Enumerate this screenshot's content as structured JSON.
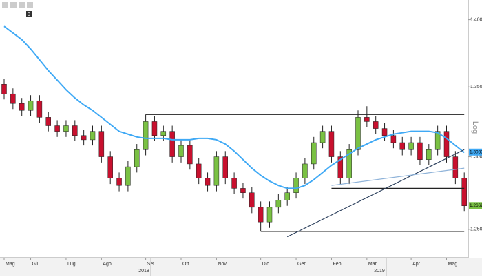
{
  "chart_data": {
    "type": "candlestick",
    "badge": "0",
    "log_scale": true,
    "log_label": "Log",
    "categories": [
      "Mag",
      null,
      null,
      "Giu",
      null,
      null,
      null,
      "Lug",
      null,
      null,
      null,
      "Ago",
      null,
      null,
      null,
      null,
      "Set",
      null,
      null,
      null,
      "Ott",
      null,
      null,
      null,
      "Nov",
      null,
      null,
      null,
      null,
      "Dic",
      null,
      null,
      null,
      "Gen",
      null,
      null,
      null,
      "Feb",
      null,
      null,
      null,
      "Mar",
      null,
      null,
      null,
      null,
      "Apr",
      null,
      null,
      null,
      "Mag",
      null,
      null
    ],
    "years": [
      "2018",
      "2019"
    ],
    "open": [
      1.352,
      1.345,
      1.338,
      1.333,
      1.34,
      1.328,
      1.322,
      1.318,
      1.322,
      1.315,
      1.312,
      1.318,
      1.3,
      1.285,
      1.28,
      1.293,
      1.305,
      1.325,
      1.315,
      1.318,
      1.3,
      1.308,
      1.295,
      1.285,
      1.28,
      1.3,
      1.285,
      1.278,
      1.275,
      1.265,
      1.255,
      1.265,
      1.27,
      1.275,
      1.285,
      1.295,
      1.31,
      1.318,
      1.3,
      1.285,
      1.305,
      1.328,
      1.325,
      1.32,
      1.315,
      1.31,
      1.305,
      1.31,
      1.298,
      1.305,
      1.318,
      1.3,
      1.285
    ],
    "high": [
      1.356,
      1.349,
      1.342,
      1.344,
      1.344,
      1.332,
      1.326,
      1.326,
      1.326,
      1.319,
      1.322,
      1.322,
      1.304,
      1.289,
      1.297,
      1.309,
      1.33,
      1.329,
      1.322,
      1.322,
      1.312,
      1.312,
      1.299,
      1.289,
      1.304,
      1.304,
      1.289,
      1.282,
      1.279,
      1.269,
      1.269,
      1.274,
      1.279,
      1.289,
      1.299,
      1.314,
      1.322,
      1.322,
      1.304,
      1.309,
      1.333,
      1.336,
      1.329,
      1.324,
      1.319,
      1.314,
      1.314,
      1.314,
      1.309,
      1.322,
      1.322,
      1.304,
      1.289
    ],
    "low": [
      1.341,
      1.334,
      1.329,
      1.329,
      1.324,
      1.318,
      1.314,
      1.314,
      1.311,
      1.308,
      1.308,
      1.296,
      1.281,
      1.276,
      1.276,
      1.289,
      1.301,
      1.311,
      1.311,
      1.296,
      1.296,
      1.291,
      1.281,
      1.276,
      1.276,
      1.281,
      1.274,
      1.271,
      1.261,
      1.249,
      1.251,
      1.261,
      1.266,
      1.271,
      1.281,
      1.291,
      1.306,
      1.296,
      1.281,
      1.281,
      1.301,
      1.321,
      1.316,
      1.311,
      1.306,
      1.301,
      1.301,
      1.294,
      1.294,
      1.301,
      1.296,
      1.281,
      1.262
    ],
    "close": [
      1.345,
      1.338,
      1.333,
      1.34,
      1.328,
      1.322,
      1.318,
      1.322,
      1.315,
      1.312,
      1.318,
      1.3,
      1.285,
      1.28,
      1.293,
      1.305,
      1.325,
      1.315,
      1.318,
      1.3,
      1.308,
      1.295,
      1.285,
      1.28,
      1.3,
      1.285,
      1.278,
      1.275,
      1.265,
      1.255,
      1.265,
      1.27,
      1.275,
      1.285,
      1.295,
      1.31,
      1.318,
      1.3,
      1.285,
      1.305,
      1.328,
      1.325,
      1.32,
      1.315,
      1.31,
      1.305,
      1.31,
      1.298,
      1.305,
      1.318,
      1.3,
      1.285,
      1.266
    ],
    "up_color": "#7ac143",
    "down_color": "#c8102e",
    "ma": {
      "color": "#3fa9f5",
      "values": [
        1.395,
        1.39,
        1.385,
        1.378,
        1.37,
        1.362,
        1.355,
        1.348,
        1.342,
        1.337,
        1.333,
        1.328,
        1.323,
        1.318,
        1.316,
        1.314,
        1.313,
        1.313,
        1.313,
        1.312,
        1.312,
        1.312,
        1.313,
        1.313,
        1.312,
        1.309,
        1.304,
        1.298,
        1.292,
        1.287,
        1.283,
        1.28,
        1.278,
        1.278,
        1.28,
        1.284,
        1.289,
        1.294,
        1.298,
        1.302,
        1.306,
        1.309,
        1.312,
        1.314,
        1.316,
        1.317,
        1.318,
        1.318,
        1.318,
        1.317,
        1.313,
        1.308,
        1.303
      ]
    },
    "lines": [
      {
        "color": "#222222",
        "x": [
          16,
          52
        ],
        "y": [
          1.33,
          1.33
        ]
      },
      {
        "color": "#222222",
        "x": [
          29,
          52
        ],
        "y": [
          1.2486,
          1.2486
        ]
      },
      {
        "color": "#222222",
        "x": [
          37,
          52
        ],
        "y": [
          1.278,
          1.278
        ]
      },
      {
        "color": "#2b3f5c",
        "x": [
          32,
          52
        ],
        "y": [
          1.245,
          1.305
        ]
      },
      {
        "color": "#8fb3d9",
        "x": [
          37,
          52
        ],
        "y": [
          1.28,
          1.292
        ]
      }
    ],
    "ylim": [
      1.231,
      1.415
    ],
    "yticks": [
      {
        "value": 1.25,
        "label": "1.2500"
      },
      {
        "value": 1.3,
        "label": "1.3000"
      },
      {
        "value": 1.35,
        "label": "1.3500"
      },
      {
        "value": 1.4,
        "label": "1.4000"
      }
    ],
    "price_tags": [
      {
        "value": 1.3033,
        "color": "#3fa9f5"
      },
      {
        "value": 1.2662,
        "color": "#7ac143"
      }
    ]
  }
}
